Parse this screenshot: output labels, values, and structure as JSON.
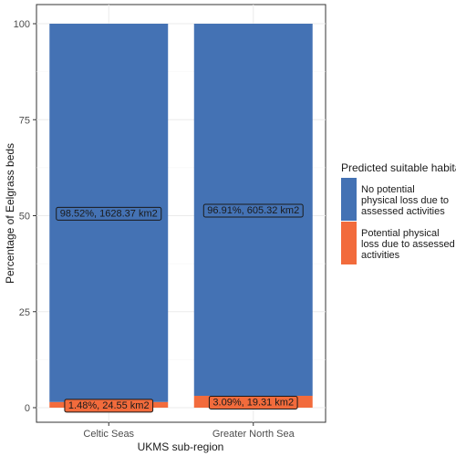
{
  "chart_data": {
    "type": "bar",
    "stacked": true,
    "categories": [
      "Celtic Seas",
      "Greater North Sea"
    ],
    "series": [
      {
        "name": "No potential physical loss due to assessed activities",
        "values": [
          98.52,
          96.91
        ],
        "color": "#4472b4",
        "labels": [
          "98.52%, 1628.37 km2",
          "96.91%, 605.32 km2"
        ]
      },
      {
        "name": "Potential physical loss due to assessed activities",
        "values": [
          1.48,
          3.09
        ],
        "color": "#f26b3c",
        "labels": [
          "1.48%,  24.55 km2",
          "3.09%,  19.31 km2"
        ]
      }
    ],
    "xlabel": "UKMS sub-region",
    "ylabel": "Percentage of Eelgrass beds",
    "ylim": [
      0,
      100
    ],
    "yticks": [
      0,
      25,
      50,
      75,
      100
    ],
    "grid": true,
    "legend": {
      "title": "Predicted suitable habitat",
      "placement": "right",
      "entries": [
        {
          "lines": [
            "No potential",
            "physical loss due to",
            "assessed activities"
          ],
          "color": "#4472b4"
        },
        {
          "lines": [
            "Potential physical",
            "loss due to assessed",
            "activities"
          ],
          "color": "#f26b3c"
        }
      ]
    }
  }
}
